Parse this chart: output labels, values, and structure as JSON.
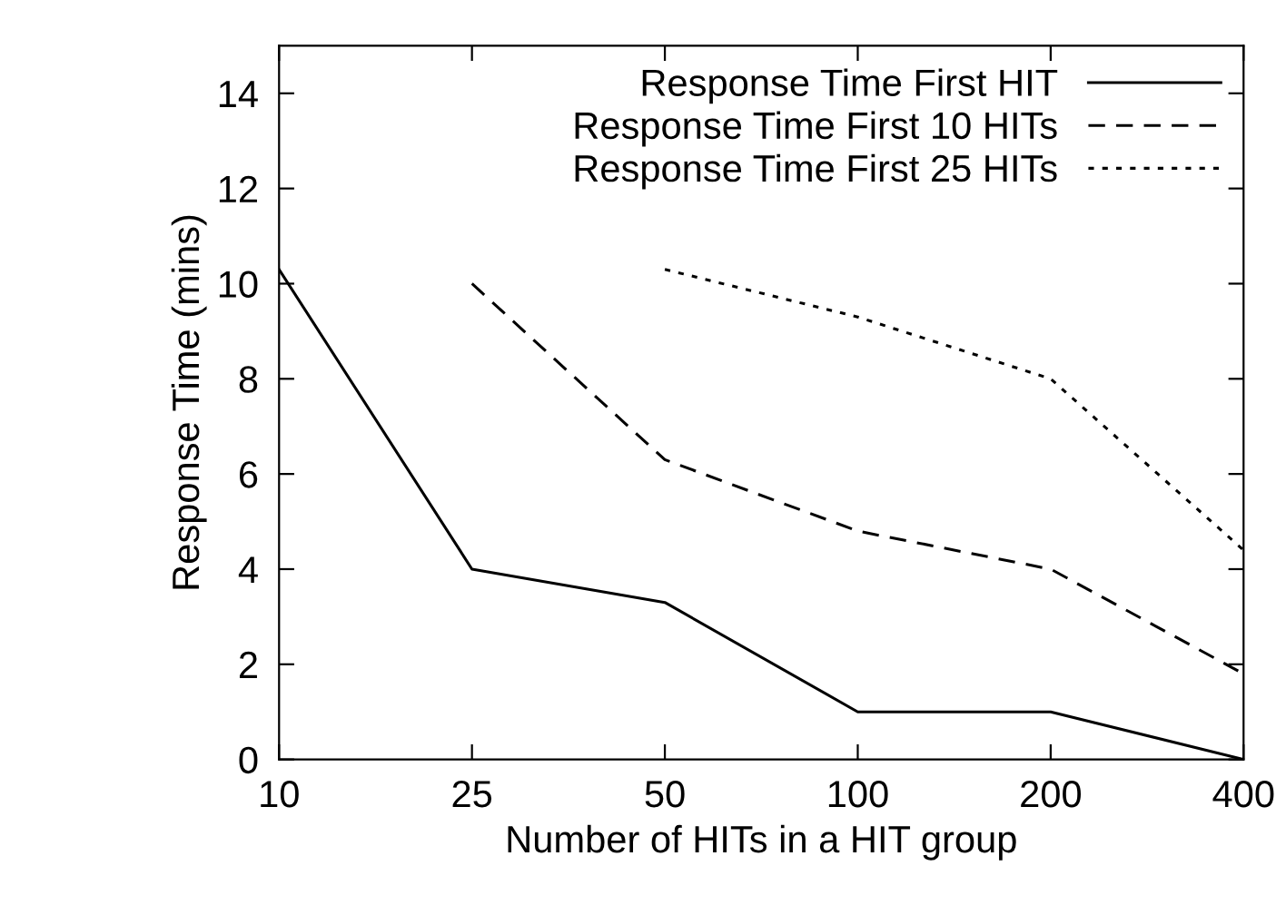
{
  "chart_data": {
    "type": "line",
    "xlabel": "Number of HITs in a HIT group",
    "ylabel": "Response Time (mins)",
    "categories": [
      "10",
      "25",
      "50",
      "100",
      "200",
      "400"
    ],
    "series": [
      {
        "name": "Response Time First HIT",
        "color": "#000000",
        "line_style": "solid",
        "values": [
          10.3,
          4.0,
          3.3,
          1.0,
          1.0,
          0.0
        ]
      },
      {
        "name": "Response Time First 10 HITs",
        "color": "#000000",
        "line_style": "dashed",
        "values": [
          null,
          10.0,
          6.3,
          4.8,
          4.0,
          1.8
        ]
      },
      {
        "name": "Response Time First 25 HITs",
        "color": "#000000",
        "line_style": "dotted",
        "values": [
          null,
          null,
          10.3,
          9.3,
          8.0,
          4.4
        ]
      }
    ],
    "ylim": [
      0,
      15
    ],
    "yticks": [
      0,
      2,
      4,
      6,
      8,
      10,
      12,
      14
    ],
    "grid": false,
    "legend": "top right",
    "marker": "none"
  }
}
